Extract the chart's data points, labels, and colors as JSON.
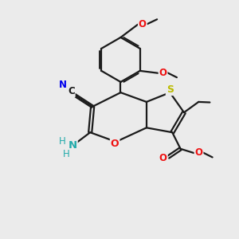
{
  "background_color": "#ebebeb",
  "bond_color": "#1a1a1a",
  "bond_width": 1.6,
  "dbo": 0.07,
  "atom_colors": {
    "C": "#1a1a1a",
    "N": "#0000ee",
    "O": "#ee1111",
    "S": "#bbbb00",
    "NH2": "#22aaaa"
  },
  "fs": 9.0
}
